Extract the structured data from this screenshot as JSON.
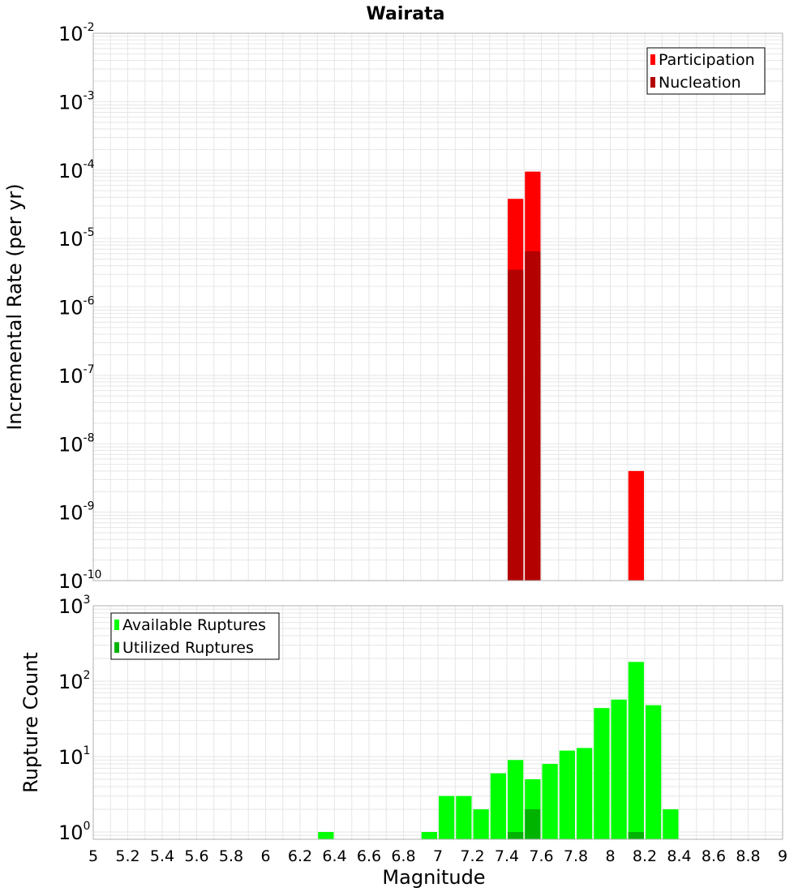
{
  "chart_data": [
    {
      "type": "bar",
      "title": "Wairata",
      "ylabel": "Incremental Rate (per yr)",
      "xlabel": "",
      "xlim": [
        5,
        9
      ],
      "ylim": [
        1e-10,
        0.01
      ],
      "yscale": "log",
      "y_tick_exponents": [
        -10,
        -9,
        -8,
        -7,
        -6,
        -5,
        -4,
        -3,
        -2
      ],
      "bin_width": 0.1,
      "grid": true,
      "legend_position": "top-right",
      "series": [
        {
          "name": "Participation",
          "color": "#ff0000",
          "x": [
            7.45,
            7.55,
            8.15
          ],
          "values": [
            3.8e-05,
            9.5e-05,
            4e-09
          ]
        },
        {
          "name": "Nucleation",
          "color": "#b30000",
          "x": [
            7.45,
            7.55
          ],
          "values": [
            3.5e-06,
            6.5e-06
          ]
        }
      ]
    },
    {
      "type": "bar",
      "title": "",
      "ylabel": "Rupture Count",
      "xlabel": "Magnitude",
      "xlim": [
        5,
        9
      ],
      "ylim": [
        0.8,
        1000
      ],
      "yscale": "log",
      "y_tick_exponents": [
        0,
        1,
        2,
        3
      ],
      "x_ticks": [
        "5",
        "5.2",
        "5.4",
        "5.6",
        "5.8",
        "6",
        "6.2",
        "6.4",
        "6.6",
        "6.8",
        "7",
        "7.2",
        "7.4",
        "7.6",
        "7.8",
        "8",
        "8.2",
        "8.4",
        "8.6",
        "8.8",
        "9"
      ],
      "bin_width": 0.1,
      "grid": true,
      "legend_position": "top-left",
      "series": [
        {
          "name": "Available Ruptures",
          "color": "#00ff00",
          "x": [
            6.35,
            6.95,
            7.05,
            7.15,
            7.25,
            7.35,
            7.45,
            7.55,
            7.65,
            7.75,
            7.85,
            7.95,
            8.05,
            8.15,
            8.25,
            8.35
          ],
          "values": [
            1,
            1,
            3,
            3,
            2,
            6,
            9,
            5,
            8,
            12,
            13,
            44,
            57,
            180,
            48,
            2
          ]
        },
        {
          "name": "Utilized Ruptures",
          "color": "#00b300",
          "x": [
            7.45,
            7.55,
            8.15
          ],
          "values": [
            1,
            2,
            1
          ]
        }
      ]
    }
  ]
}
